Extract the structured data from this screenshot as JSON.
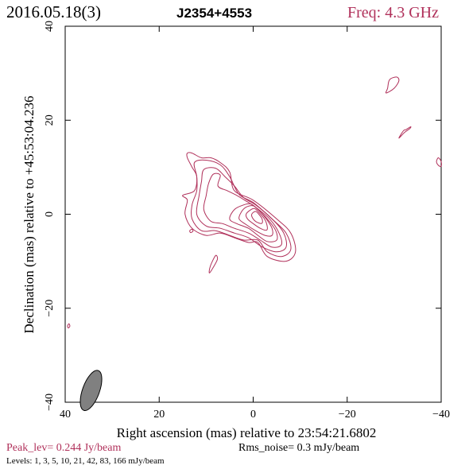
{
  "header": {
    "date": "2016.05.18(3)",
    "source": "J2354+4553",
    "freq": "Freq: 4.3 GHz"
  },
  "footer": {
    "peak": "Peak_lev=  0.244 Jy/beam",
    "rms": "Rms_noise=  0.3 mJy/beam",
    "levels": "Levels:  1,  3,  5,  10,  21,  42,  83,  166 mJy/beam"
  },
  "colors": {
    "contour": "#b0305a",
    "beam_fill": "#808080"
  },
  "chart_data": {
    "type": "contour",
    "xlabel": "Right ascension (mas) relative to 23:54:21.6802",
    "ylabel": "Declination (mas) relative to +45:53:04.236",
    "xlim": [
      40,
      -40
    ],
    "ylim": [
      -40,
      40
    ],
    "x_ticks": [
      40,
      20,
      0,
      -20,
      -40
    ],
    "y_ticks": [
      -40,
      -20,
      0,
      20,
      40
    ],
    "x_tick_labels": [
      "40",
      "20",
      "0",
      "−20",
      "−40"
    ],
    "y_tick_labels": [
      "−40",
      "−20",
      "0",
      "20",
      "40"
    ],
    "levels_mJy_per_beam": [
      1,
      3,
      5,
      10,
      21,
      42,
      83,
      166
    ],
    "peak_Jy_per_beam": 0.244,
    "rms_noise_mJy_per_beam": 0.3,
    "contours": [
      {
        "points": [
          [
            4,
            5
          ],
          [
            0,
            3
          ],
          [
            -5,
            -1
          ],
          [
            -8,
            -4
          ],
          [
            -9,
            -8
          ],
          [
            -7,
            -10
          ],
          [
            -3,
            -9
          ],
          [
            -1,
            -6
          ],
          [
            1,
            -6
          ],
          [
            4,
            -5
          ],
          [
            7,
            -4
          ],
          [
            10,
            -4.5
          ],
          [
            13,
            -3
          ],
          [
            14.5,
            0
          ],
          [
            14,
            3
          ],
          [
            15,
            4
          ],
          [
            12.5,
            5
          ],
          [
            12,
            8
          ],
          [
            13,
            10
          ],
          [
            14,
            12
          ],
          [
            14,
            13
          ],
          [
            13,
            13
          ],
          [
            11,
            12
          ],
          [
            9,
            12
          ],
          [
            7,
            11
          ],
          [
            5,
            9
          ],
          [
            4,
            5
          ]
        ]
      },
      {
        "points": [
          [
            3,
            4.2
          ],
          [
            0,
            2.5
          ],
          [
            -4,
            -1
          ],
          [
            -7,
            -4
          ],
          [
            -8,
            -7.5
          ],
          [
            -6,
            -9
          ],
          [
            -3,
            -8
          ],
          [
            -1,
            -5.5
          ],
          [
            2,
            -5.5
          ],
          [
            5,
            -4.5
          ],
          [
            8,
            -3.5
          ],
          [
            11,
            -3.5
          ],
          [
            13,
            -1
          ],
          [
            13,
            2
          ],
          [
            12,
            5
          ],
          [
            12,
            8
          ],
          [
            12.5,
            11
          ],
          [
            10,
            11.5
          ],
          [
            7,
            10.5
          ],
          [
            5,
            8
          ],
          [
            3,
            4.2
          ]
        ]
      },
      {
        "points": [
          [
            2,
            3.5
          ],
          [
            -0.5,
            2
          ],
          [
            -4,
            -1
          ],
          [
            -6.5,
            -4
          ],
          [
            -7,
            -7
          ],
          [
            -5,
            -8
          ],
          [
            -2,
            -7
          ],
          [
            1,
            -5
          ],
          [
            4,
            -4
          ],
          [
            7,
            -3
          ],
          [
            10,
            -2.5
          ],
          [
            12,
            0
          ],
          [
            11.5,
            4
          ],
          [
            11,
            7
          ],
          [
            10.5,
            9.5
          ],
          [
            8,
            9.8
          ],
          [
            6,
            8
          ],
          [
            4,
            6
          ],
          [
            2,
            3.5
          ]
        ]
      },
      {
        "points": [
          [
            1.5,
            2.8
          ],
          [
            -0.5,
            1.5
          ],
          [
            -3.5,
            -1
          ],
          [
            -5.5,
            -4
          ],
          [
            -6,
            -6.5
          ],
          [
            -4,
            -7
          ],
          [
            -1.5,
            -5.5
          ],
          [
            1,
            -4
          ],
          [
            4,
            -3
          ],
          [
            6.5,
            -2
          ],
          [
            9,
            -1.5
          ],
          [
            10.5,
            1
          ],
          [
            10,
            4
          ],
          [
            9.5,
            6.5
          ],
          [
            8.5,
            8.5
          ],
          [
            7,
            8.3
          ],
          [
            7.5,
            6
          ],
          [
            5.5,
            5
          ],
          [
            3.5,
            4
          ],
          [
            1.5,
            2.8
          ]
        ]
      },
      {
        "points": [
          [
            0.5,
            2.2
          ],
          [
            -0.8,
            1.2
          ],
          [
            -3,
            -1
          ],
          [
            -4.8,
            -3.5
          ],
          [
            -5,
            -5.5
          ],
          [
            -3,
            -5.8
          ],
          [
            -1,
            -4.5
          ],
          [
            1,
            -3
          ],
          [
            3.5,
            -2
          ],
          [
            5,
            -1
          ],
          [
            4,
            1
          ],
          [
            2,
            2
          ],
          [
            0.5,
            2.2
          ]
        ]
      },
      {
        "points": [
          [
            0,
            1.8
          ],
          [
            -1.2,
            0.8
          ],
          [
            -2.8,
            -1
          ],
          [
            -4,
            -3
          ],
          [
            -4,
            -4.5
          ],
          [
            -2.5,
            -4.5
          ],
          [
            -0.5,
            -3.5
          ],
          [
            1.5,
            -2.2
          ],
          [
            3,
            -1
          ],
          [
            2.5,
            0.5
          ],
          [
            1.5,
            1.5
          ],
          [
            0,
            1.8
          ]
        ]
      },
      {
        "points": [
          [
            -0.3,
            1.2
          ],
          [
            -1.2,
            0.4
          ],
          [
            -2.4,
            -1
          ],
          [
            -3,
            -2.6
          ],
          [
            -2.8,
            -3.4
          ],
          [
            -1.5,
            -3
          ],
          [
            0,
            -2
          ],
          [
            1.2,
            -1
          ],
          [
            1.5,
            0
          ],
          [
            0.6,
            0.9
          ],
          [
            -0.3,
            1.2
          ]
        ]
      },
      {
        "points": [
          [
            -0.5,
            0.6
          ],
          [
            -1.2,
            0
          ],
          [
            -1.9,
            -1
          ],
          [
            -1.9,
            -1.9
          ],
          [
            -1,
            -1.8
          ],
          [
            0,
            -1
          ],
          [
            0.3,
            0
          ],
          [
            -0.5,
            0.6
          ]
        ]
      },
      {
        "points": [
          [
            -29,
            28.6
          ],
          [
            -30.5,
            29.2
          ],
          [
            -31,
            28.4
          ],
          [
            -30,
            26.8
          ],
          [
            -28.3,
            25.8
          ],
          [
            -28.6,
            26.8
          ],
          [
            -29,
            28.6
          ]
        ]
      },
      {
        "points": [
          [
            -32,
            17.8
          ],
          [
            -32.5,
            18
          ],
          [
            -33.5,
            18.6
          ],
          [
            -33.3,
            18.2
          ],
          [
            -32.2,
            17.4
          ],
          [
            -31,
            16.2
          ],
          [
            -32,
            17.8
          ]
        ]
      },
      {
        "points": [
          [
            -39.4,
            12
          ],
          [
            -40,
            11.2
          ],
          [
            -40,
            10.2
          ],
          [
            -39.4,
            10.4
          ],
          [
            -39,
            11.2
          ],
          [
            -39.4,
            12
          ]
        ]
      },
      {
        "points": [
          [
            8,
            -8.8
          ],
          [
            7.6,
            -9.5
          ],
          [
            8.2,
            -10.8
          ],
          [
            9.3,
            -12.5
          ],
          [
            9.1,
            -11
          ],
          [
            8,
            -8.8
          ]
        ]
      },
      {
        "points": [
          [
            13,
            -3.2
          ],
          [
            12.8,
            -3.6
          ],
          [
            13.3,
            -3.9
          ],
          [
            13.5,
            -3.5
          ],
          [
            13,
            -3.2
          ]
        ]
      },
      {
        "points": [
          [
            39.2,
            -23.3
          ],
          [
            39,
            -23.8
          ],
          [
            39.3,
            -24.2
          ],
          [
            39.5,
            -23.8
          ],
          [
            39.2,
            -23.3
          ]
        ]
      }
    ],
    "beam": {
      "ra_center": 34.5,
      "dec_center": -37.5,
      "major_mas": 4.5,
      "minor_mas": 1.8,
      "pa_deg": 20
    }
  }
}
